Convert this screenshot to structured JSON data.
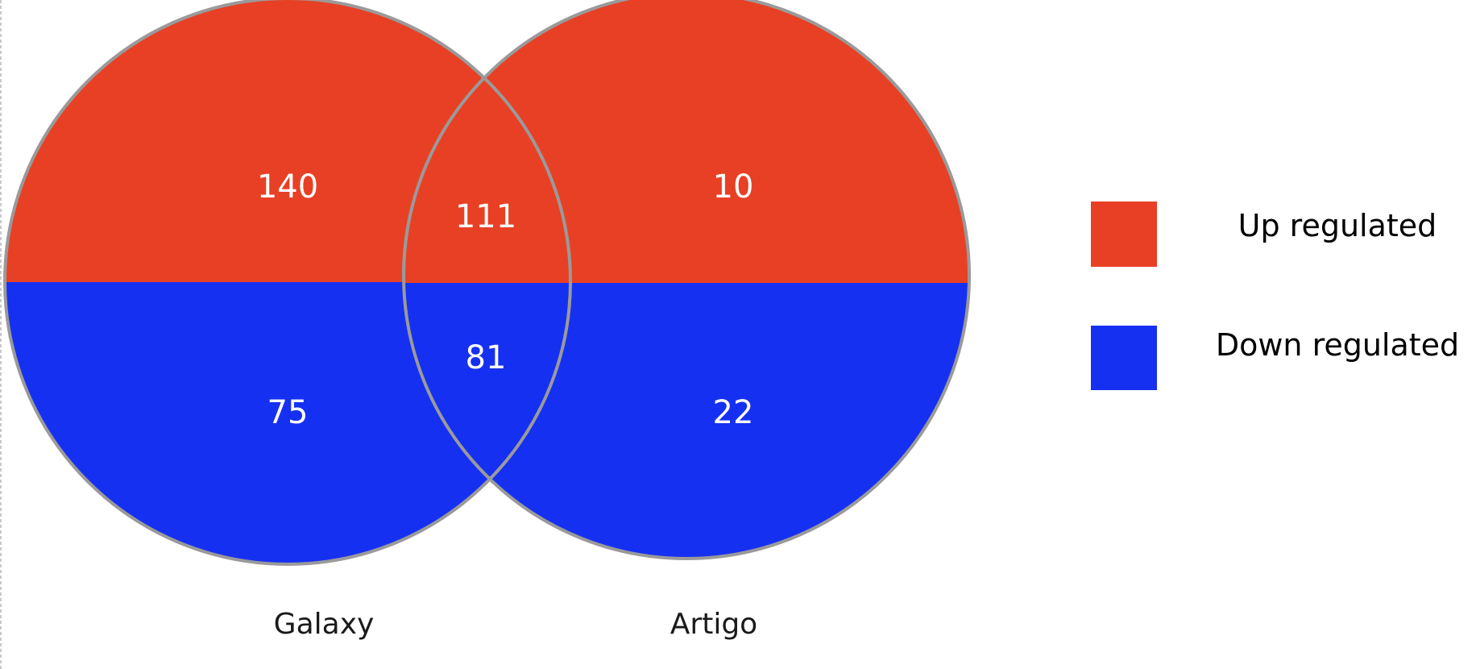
{
  "colors": {
    "up": "#E84025",
    "down": "#1630F2",
    "outline": "#9A9A9A"
  },
  "sets": [
    {
      "name": "Galaxy"
    },
    {
      "name": "Artigo"
    }
  ],
  "regions": {
    "galaxy_only": {
      "up": "140",
      "down": "75"
    },
    "overlap": {
      "up": "111",
      "down": "81"
    },
    "artigo_only": {
      "up": "10",
      "down": "22"
    }
  },
  "legend": [
    {
      "label": "Up regulated",
      "color": "#E84025"
    },
    {
      "label": "Down regulated",
      "color": "#1630F2"
    }
  ]
}
